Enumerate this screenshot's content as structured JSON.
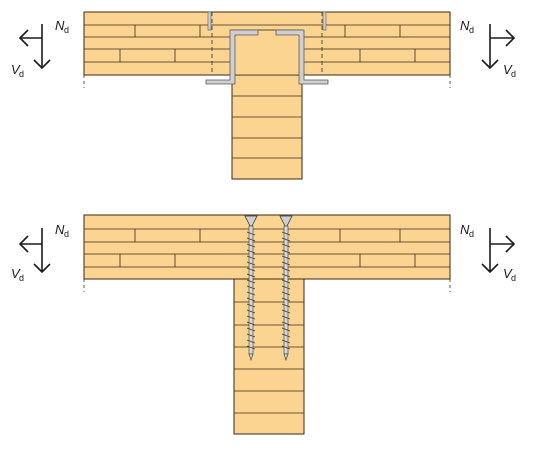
{
  "figure": {
    "connections": [
      {
        "id": "bracket-connection",
        "fastener": "metal-bracket",
        "forces": {
          "left": {
            "normal": "N",
            "shear": "V",
            "subscript": "d"
          },
          "right": {
            "normal": "N",
            "shear": "V",
            "subscript": "d"
          }
        }
      },
      {
        "id": "screw-connection",
        "fastener": "screws",
        "forces": {
          "left": {
            "normal": "N",
            "shear": "V",
            "subscript": "d"
          },
          "right": {
            "normal": "N",
            "shear": "V",
            "subscript": "d"
          }
        }
      }
    ],
    "colors": {
      "timber": "#fcd491",
      "timber_edge": "#c99a4a",
      "outline": "#3a2a14",
      "steel": "#cfcfcf",
      "steel_edge": "#5a5a5a",
      "arrow": "#1a1a1a"
    },
    "icons": [
      "arrow-left-icon",
      "arrow-right-icon",
      "arrow-down-icon"
    ]
  }
}
